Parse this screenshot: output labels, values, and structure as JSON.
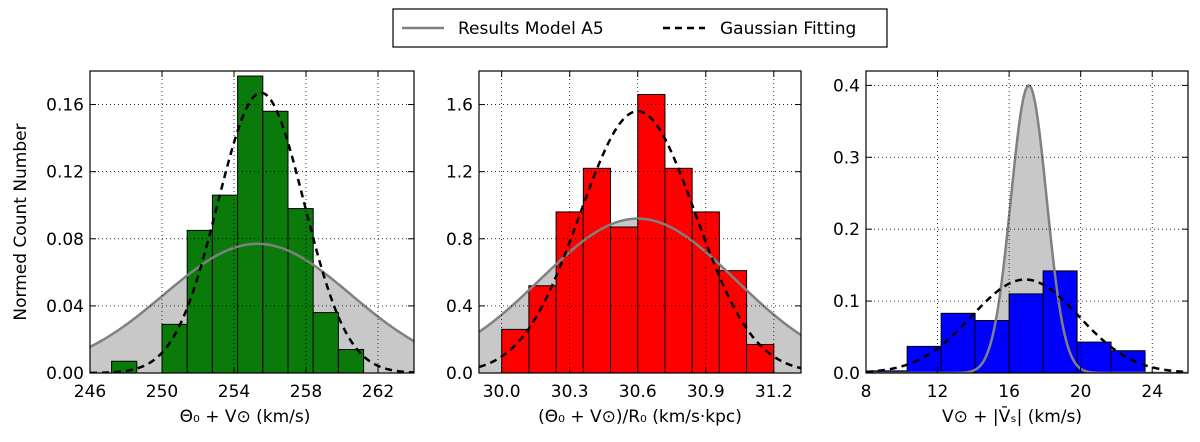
{
  "legend": {
    "entries": [
      {
        "label": "Results Model A5",
        "style": "solid",
        "color": "#808080"
      },
      {
        "label": "Gaussian Fitting",
        "style": "dashed",
        "color": "#000000"
      }
    ]
  },
  "colors": {
    "fill_gray": "#c8c8c8",
    "line_gray": "#808080",
    "green": "#0a7a0a",
    "red": "#ff0000",
    "blue": "#0000ff",
    "grid": "#888888"
  },
  "chart_data": [
    {
      "type": "bar",
      "panel": "left",
      "xlabel": "Θ₀ + V⊙ (km/s)",
      "ylabel": "Normed Count Number",
      "xlim": [
        246,
        264
      ],
      "ylim": [
        0,
        0.18
      ],
      "xticks": [
        246,
        250,
        254,
        258,
        262
      ],
      "yticks": [
        0.0,
        0.04,
        0.08,
        0.12,
        0.16
      ],
      "ytick_labels": [
        "0.00",
        "0.04",
        "0.08",
        "0.12",
        "0.16"
      ],
      "bar_color": "#0a7a0a",
      "bin_edges": [
        247.2,
        248.6,
        250.0,
        251.4,
        252.8,
        254.2,
        255.6,
        257.0,
        258.4,
        259.8,
        261.2
      ],
      "values": [
        0.007,
        0.0,
        0.029,
        0.085,
        0.106,
        0.177,
        0.156,
        0.098,
        0.036,
        0.014
      ],
      "model_curve": {
        "mu": 255.3,
        "sigma": 5.2,
        "amp": 0.077
      },
      "gaussian_fit": {
        "mu": 255.5,
        "sigma": 2.4,
        "amp": 0.167
      }
    },
    {
      "type": "bar",
      "panel": "middle",
      "xlabel": "(Θ₀ + V⊙)/R₀ (km/s·kpc)",
      "ylabel": "",
      "xlim": [
        29.9,
        31.32
      ],
      "ylim": [
        0,
        1.8
      ],
      "xticks": [
        30.0,
        30.3,
        30.6,
        30.9,
        31.2
      ],
      "yticks": [
        0.0,
        0.4,
        0.8,
        1.2,
        1.6
      ],
      "ytick_labels": [
        "0.0",
        "0.4",
        "0.8",
        "1.2",
        "1.6"
      ],
      "bar_color": "#ff0000",
      "bin_edges": [
        30.0,
        30.12,
        30.24,
        30.36,
        30.48,
        30.6,
        30.72,
        30.84,
        30.96,
        31.08,
        31.2
      ],
      "values": [
        0.26,
        0.52,
        0.96,
        1.22,
        0.87,
        1.66,
        1.22,
        0.96,
        0.61,
        0.17
      ],
      "model_curve": {
        "mu": 30.6,
        "sigma": 0.43,
        "amp": 0.92
      },
      "gaussian_fit": {
        "mu": 30.6,
        "sigma": 0.255,
        "amp": 1.56
      }
    },
    {
      "type": "bar",
      "panel": "right",
      "xlabel": "V⊙ + |V̄ₛ| (km/s)",
      "ylabel": "",
      "xlim": [
        8,
        26
      ],
      "ylim": [
        0,
        0.42
      ],
      "xticks": [
        8,
        12,
        16,
        20,
        24
      ],
      "yticks": [
        0.0,
        0.1,
        0.2,
        0.3,
        0.4
      ],
      "ytick_labels": [
        "0.0",
        "0.1",
        "0.2",
        "0.3",
        "0.4"
      ],
      "bar_color": "#0000ff",
      "bin_edges": [
        8.4,
        10.3,
        12.2,
        14.1,
        16.0,
        17.9,
        19.8,
        21.7,
        23.6
      ],
      "values": [
        0.003,
        0.037,
        0.083,
        0.073,
        0.11,
        0.142,
        0.043,
        0.031
      ],
      "model_curve": {
        "mu": 17.1,
        "sigma": 1.0,
        "amp": 0.4
      },
      "gaussian_fit": {
        "mu": 16.9,
        "sigma": 3.0,
        "amp": 0.13
      }
    }
  ]
}
